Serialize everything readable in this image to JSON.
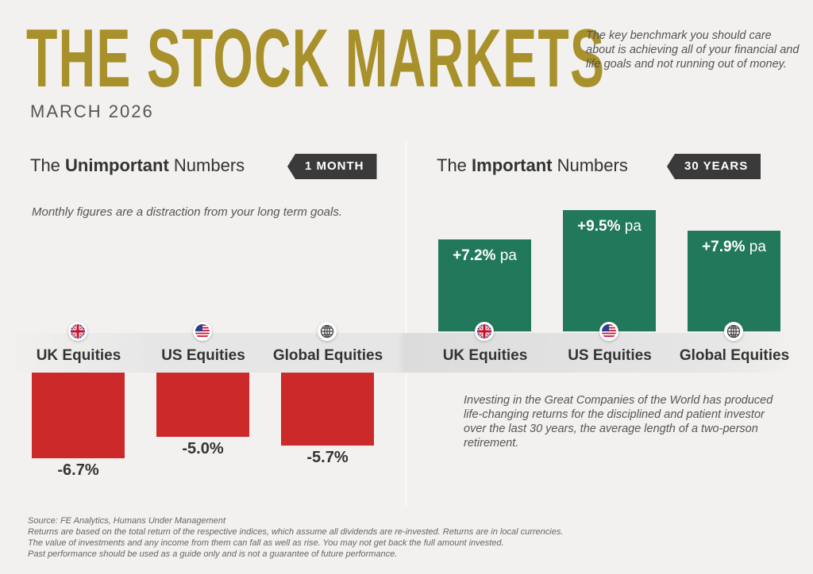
{
  "header": {
    "title": "THE STOCK MARKETS",
    "date": "MARCH 2026",
    "blurb": "The key benchmark you should care about is achieving all of your financial and life goals and not running out of money."
  },
  "left": {
    "pre": "The ",
    "bold": "Unimportant",
    "post": " Numbers",
    "tag": "1 MONTH",
    "note": "Monthly figures are a distraction from your long term goals."
  },
  "right": {
    "pre": "The ",
    "bold": "Important",
    "post": " Numbers",
    "tag": "30 YEARS",
    "note": "Investing in the Great Companies of the World has produced life-changing returns for the disciplined and patient investor over the last 30 years, the average length of a two-person retirement."
  },
  "footer": [
    "Source: FE Analytics, Humans Under Management",
    "Returns are based on the total return of the respective indices, which assume all dividends are re-invested. Returns are in local currencies.",
    "The value of investments and any income from them can fall as well as rise. You may not get back the full amount invested.",
    "Past performance should be used as a guide only and is not a guarantee of future performance."
  ],
  "colors": {
    "gold": "#a8902a",
    "red": "#cc2a2a",
    "green": "#22785a"
  },
  "chart_data": [
    {
      "type": "bar",
      "title": "1 MONTH",
      "categories": [
        "UK Equities",
        "US Equities",
        "Global Equities"
      ],
      "values": [
        -6.7,
        -5.0,
        -5.7
      ],
      "labels": [
        "-6.7%",
        "-5.0%",
        "-5.7%"
      ],
      "icons": [
        "uk-flag-icon",
        "us-flag-icon",
        "globe-icon"
      ]
    },
    {
      "type": "bar",
      "title": "30 YEARS",
      "categories": [
        "UK Equities",
        "US Equities",
        "Global Equities"
      ],
      "values": [
        7.2,
        9.5,
        7.9
      ],
      "labels": [
        "+7.2%",
        "+9.5%",
        "+7.9%"
      ],
      "unit": "pa",
      "icons": [
        "uk-flag-icon",
        "us-flag-icon",
        "globe-icon"
      ]
    }
  ]
}
